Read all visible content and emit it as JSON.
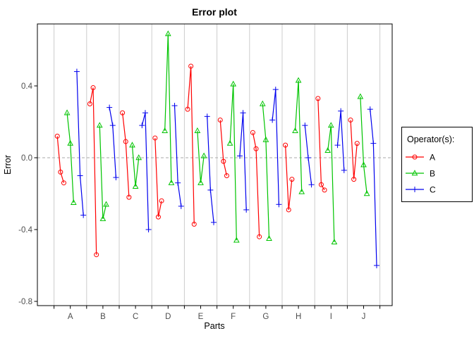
{
  "chart_data": {
    "type": "line",
    "title": "Error plot",
    "xlabel": "Parts",
    "ylabel": "Error",
    "categories": [
      "A",
      "B",
      "C",
      "D",
      "E",
      "F",
      "G",
      "H",
      "I",
      "J"
    ],
    "yticks": [
      {
        "value": 0.4,
        "label": "0.4"
      },
      {
        "value": 0.0,
        "label": "0.0"
      },
      {
        "value": -0.4,
        "label": "-0.4"
      },
      {
        "value": -0.8,
        "label": "-0.8"
      }
    ],
    "ylim": [
      -0.82,
      0.75
    ],
    "grid": "vertical-part-separator-lines",
    "zero_line": {
      "value": 0.0,
      "style": "dashed",
      "color": "#aaaaaa"
    },
    "legend_position": "right-outside",
    "trials_per_operator_per_part": 3,
    "series": [
      {
        "name": "A",
        "color": "#ff0000",
        "marker": "circle",
        "values_by_part": [
          [
            0.12,
            -0.08,
            -0.14
          ],
          [
            0.3,
            0.39,
            -0.54
          ],
          [
            0.25,
            0.09,
            -0.22
          ],
          [
            0.11,
            -0.33,
            -0.24
          ],
          [
            0.27,
            0.51,
            -0.37
          ],
          [
            0.21,
            -0.02,
            -0.1
          ],
          [
            0.14,
            0.05,
            -0.44
          ],
          [
            0.07,
            -0.29,
            -0.12
          ],
          [
            0.33,
            -0.15,
            -0.18
          ],
          [
            0.21,
            -0.12,
            0.08
          ]
        ]
      },
      {
        "name": "B",
        "color": "#00c400",
        "marker": "triangle",
        "values_by_part": [
          [
            0.25,
            0.08,
            -0.25
          ],
          [
            0.18,
            -0.34,
            -0.26
          ],
          [
            0.07,
            -0.16,
            0.0
          ],
          [
            0.15,
            0.69,
            -0.14
          ],
          [
            0.15,
            -0.14,
            0.01
          ],
          [
            0.08,
            0.41,
            -0.46
          ],
          [
            0.3,
            0.1,
            -0.45
          ],
          [
            0.15,
            0.43,
            -0.19
          ],
          [
            0.04,
            0.18,
            -0.47
          ],
          [
            0.34,
            -0.04,
            -0.2
          ]
        ]
      },
      {
        "name": "C",
        "color": "#0000ee",
        "marker": "plus",
        "values_by_part": [
          [
            0.48,
            -0.1,
            -0.32
          ],
          [
            0.28,
            0.18,
            -0.11
          ],
          [
            0.18,
            0.25,
            -0.4
          ],
          [
            0.29,
            -0.14,
            -0.27
          ],
          [
            0.23,
            -0.18,
            -0.36
          ],
          [
            0.01,
            0.25,
            -0.29
          ],
          [
            0.21,
            0.38,
            -0.26
          ],
          [
            0.18,
            0.0,
            -0.15
          ],
          [
            0.07,
            0.26,
            -0.07
          ],
          [
            0.27,
            0.08,
            -0.6
          ]
        ]
      }
    ]
  },
  "legend": {
    "title": "Operator(s):",
    "entries": [
      {
        "label": "A",
        "color": "#ff0000",
        "marker": "circle"
      },
      {
        "label": "B",
        "color": "#00c400",
        "marker": "triangle"
      },
      {
        "label": "C",
        "color": "#0000ee",
        "marker": "plus"
      }
    ]
  },
  "colors": {
    "plot_border": "#000000",
    "gridline": "#cccccc",
    "tick_label": "#4d4d4d",
    "axis_label": "#000000",
    "background": "#ffffff"
  }
}
